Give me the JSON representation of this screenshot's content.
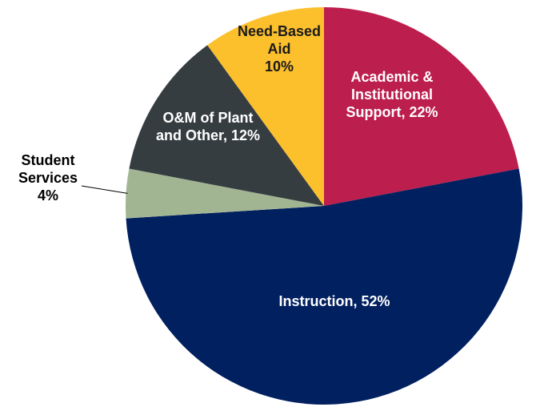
{
  "chart_data": {
    "type": "pie",
    "slices": [
      {
        "label_lines": [
          "Academic &",
          "Institutional",
          "Support, 22%"
        ],
        "value": 22,
        "color": "#BC1E4E",
        "label_color": "#ffffff",
        "label_inside": true
      },
      {
        "label_lines": [
          "Instruction, 52%"
        ],
        "value": 52,
        "color": "#012060",
        "label_color": "#ffffff",
        "label_inside": true
      },
      {
        "label_lines": [
          "Student",
          "Services",
          "4%"
        ],
        "value": 4,
        "color": "#A2B593",
        "label_color": "#000000",
        "label_inside": false
      },
      {
        "label_lines": [
          "O&M of Plant",
          "and Other, 12%"
        ],
        "value": 12,
        "color": "#363D41",
        "label_color": "#ffffff",
        "label_inside": true
      },
      {
        "label_lines": [
          "Need-Based",
          "Aid",
          "10%"
        ],
        "value": 10,
        "color": "#FCC02D",
        "label_color": "#1a1a1a",
        "label_inside": true
      }
    ],
    "start": "12 o'clock",
    "direction": "clockwise",
    "legend": "none"
  }
}
